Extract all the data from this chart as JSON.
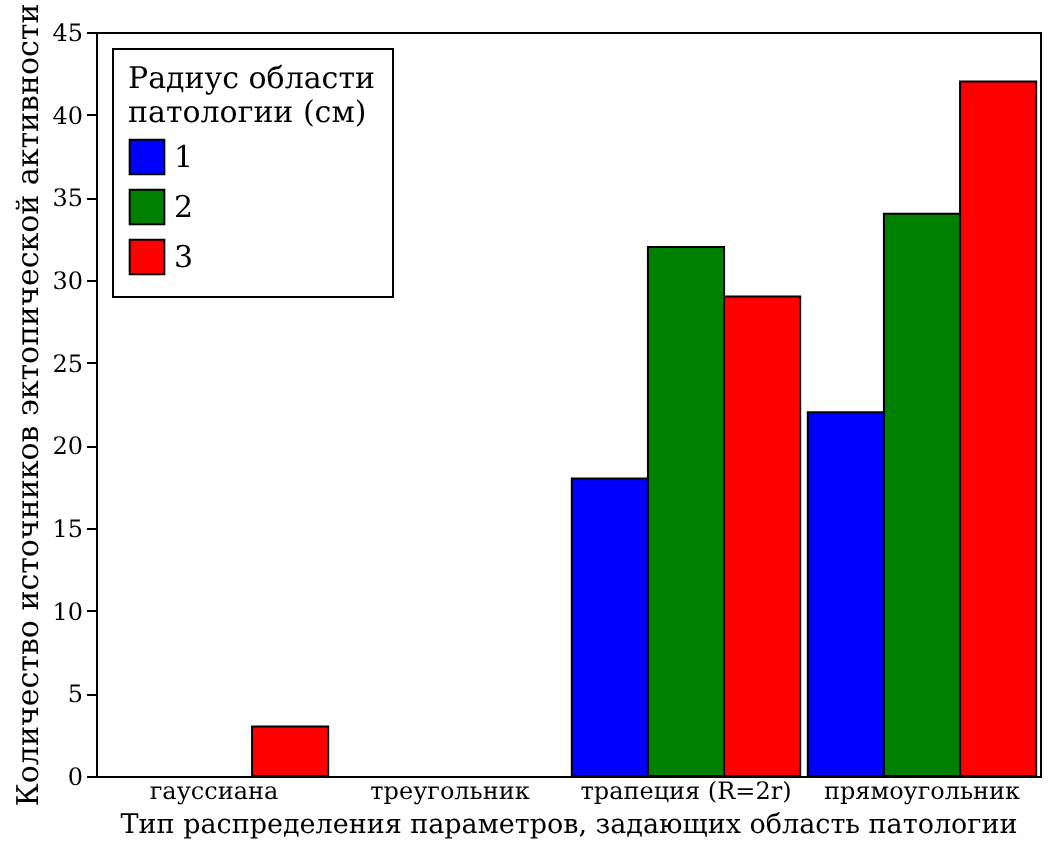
{
  "chart_data": {
    "type": "bar",
    "categories": [
      "гауссиана",
      "треугольник",
      "трапеция (R=2r)",
      "прямоугольник"
    ],
    "series": [
      {
        "name": "1",
        "color": "#0000ff",
        "values": [
          0,
          0,
          18,
          22
        ]
      },
      {
        "name": "2",
        "color": "#008000",
        "values": [
          0,
          0,
          32,
          34
        ]
      },
      {
        "name": "3",
        "color": "#ff0000",
        "values": [
          3,
          0,
          29,
          42
        ]
      }
    ],
    "xlabel": "Тип распределения параметров, задающих область патологии",
    "ylabel": "Количество источников эктопической активности",
    "legend_title": "Радиус области\nпатологии (см)",
    "legend": "top left",
    "ylim": [
      0,
      45
    ],
    "yticks": [
      0,
      5,
      10,
      15,
      20,
      25,
      30,
      35,
      40,
      45
    ],
    "grid": false
  }
}
